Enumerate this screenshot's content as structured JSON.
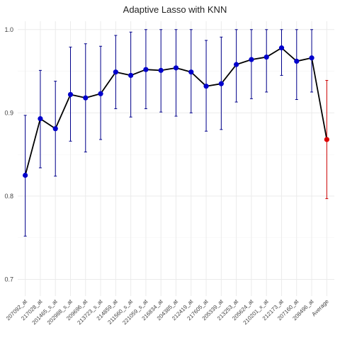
{
  "chart_data": {
    "type": "line",
    "title": "Adaptive Lasso with KNN",
    "xlabel": "",
    "ylabel": "",
    "ylim": [
      0.68,
      1.01
    ],
    "y_ticks": [
      "0.7",
      "0.8",
      "0.9",
      "1.0"
    ],
    "grid": true,
    "legend": "none",
    "colors": {
      "line": "#000000",
      "point": "#0000cc",
      "errorbar": "#00008b",
      "average_point": "#dd0000",
      "average_errorbar": "#cc0000"
    },
    "categories": [
      "207092_at",
      "217028_at",
      "201465_s_at",
      "202988_s_at",
      "209696_at",
      "213723_s_at",
      "214859_at",
      "211560_s_at",
      "221059_s_at",
      "216834_at",
      "204385_at",
      "212419_at",
      "217605_at",
      "205339_at",
      "213253_at",
      "205624_at",
      "210201_x_at",
      "212173_at",
      "207160_at",
      "208496_at",
      "Average"
    ],
    "values": [
      0.825,
      0.893,
      0.881,
      0.922,
      0.918,
      0.923,
      0.949,
      0.945,
      0.952,
      0.951,
      0.954,
      0.949,
      0.932,
      0.935,
      0.958,
      0.964,
      0.967,
      0.978,
      0.962,
      0.966,
      0.868
    ],
    "lower": [
      0.752,
      0.834,
      0.824,
      0.866,
      0.853,
      0.868,
      0.905,
      0.895,
      0.905,
      0.901,
      0.896,
      0.9,
      0.878,
      0.88,
      0.913,
      0.917,
      0.925,
      0.945,
      0.916,
      0.925,
      0.797
    ],
    "upper": [
      0.897,
      0.951,
      0.938,
      0.979,
      0.983,
      0.98,
      0.993,
      0.997,
      1.0,
      1.0,
      1.0,
      1.0,
      0.987,
      0.991,
      1.0,
      1.0,
      1.0,
      1.0,
      1.0,
      1.0,
      0.939
    ]
  }
}
